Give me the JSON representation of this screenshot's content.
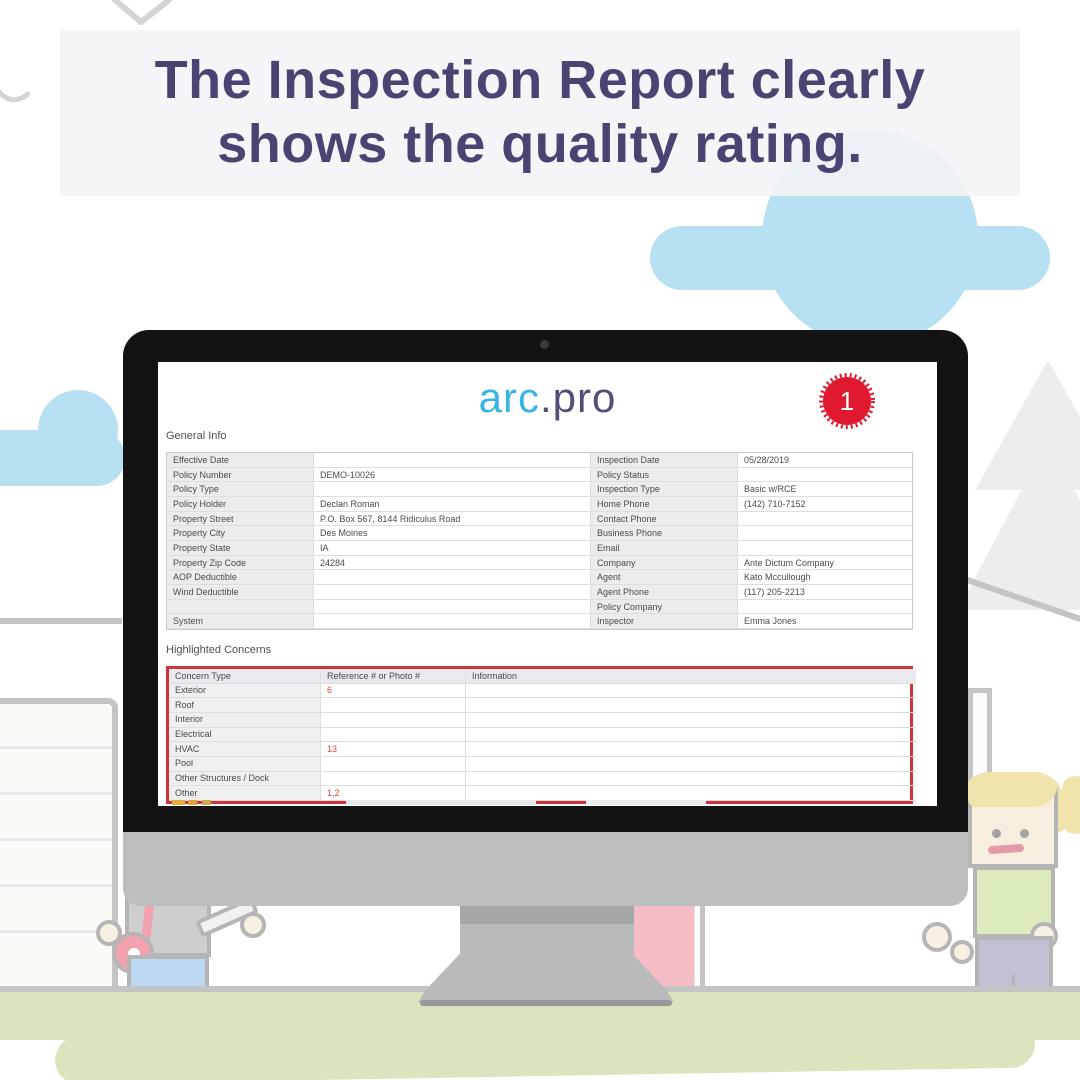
{
  "headline": {
    "line1": "The Inspection Report clearly",
    "line2": "shows the quality rating."
  },
  "monitor": {
    "logo": {
      "part1": "arc",
      "dot": ".",
      "part2": "pro"
    },
    "badge_count": "1",
    "general_info": {
      "title": "General Info",
      "left_rows": [
        {
          "label": "Effective Date",
          "value": ""
        },
        {
          "label": "Policy Number",
          "value": "DEMO-10026"
        },
        {
          "label": "Policy Type",
          "value": ""
        },
        {
          "label": "Policy Holder",
          "value": "Declan Roman"
        },
        {
          "label": "Property Street",
          "value": "P.O. Box 567, 8144 Ridiculus Road"
        },
        {
          "label": "Property City",
          "value": "Des Moines"
        },
        {
          "label": "Property State",
          "value": "IA"
        },
        {
          "label": "Property Zip Code",
          "value": "24284"
        },
        {
          "label": "AOP Deductible",
          "value": ""
        },
        {
          "label": "Wind Deductible",
          "value": ""
        },
        {
          "label": "",
          "value": ""
        },
        {
          "label": "System",
          "value": ""
        }
      ],
      "right_rows": [
        {
          "label": "Inspection Date",
          "value": "05/28/2019"
        },
        {
          "label": "Policy Status",
          "value": ""
        },
        {
          "label": "Inspection Type",
          "value": "Basic w/RCE"
        },
        {
          "label": "Home Phone",
          "value": "(142) 710-7152"
        },
        {
          "label": "Contact Phone",
          "value": ""
        },
        {
          "label": "Business Phone",
          "value": ""
        },
        {
          "label": "Email",
          "value": ""
        },
        {
          "label": "Company",
          "value": "Ante Dictum Company"
        },
        {
          "label": "Agent",
          "value": "Kato Mccullough"
        },
        {
          "label": "Agent Phone",
          "value": "(117) 205-2213"
        },
        {
          "label": "Policy Company",
          "value": ""
        },
        {
          "label": "Inspector",
          "value": "Emma Jones"
        }
      ]
    },
    "concerns": {
      "title": "Highlighted Concerns",
      "headers": [
        "Concern Type",
        "Reference # or Photo #",
        "Information"
      ],
      "rows": [
        {
          "type": "Exterior",
          "ref": "6",
          "info": ""
        },
        {
          "type": "Roof",
          "ref": "",
          "info": ""
        },
        {
          "type": "Interior",
          "ref": "",
          "info": ""
        },
        {
          "type": "Electrical",
          "ref": "",
          "info": ""
        },
        {
          "type": "HVAC",
          "ref": "13",
          "info": ""
        },
        {
          "type": "Pool",
          "ref": "",
          "info": ""
        },
        {
          "type": "Other Structures / Dock",
          "ref": "",
          "info": ""
        },
        {
          "type": "Other",
          "ref": "1,2",
          "info": ""
        }
      ]
    }
  },
  "colors": {
    "headline_text": "#4a4472",
    "banner_bg": "#f4f3f6",
    "cloud_blue": "#b7e0f2",
    "logo_blue": "#3ab3e5",
    "logo_purple": "#534d78",
    "badge_red": "#e01931",
    "concern_border_red": "#d2333a",
    "concern_value_red": "#e04040",
    "label_cell_gray": "#ececec"
  }
}
